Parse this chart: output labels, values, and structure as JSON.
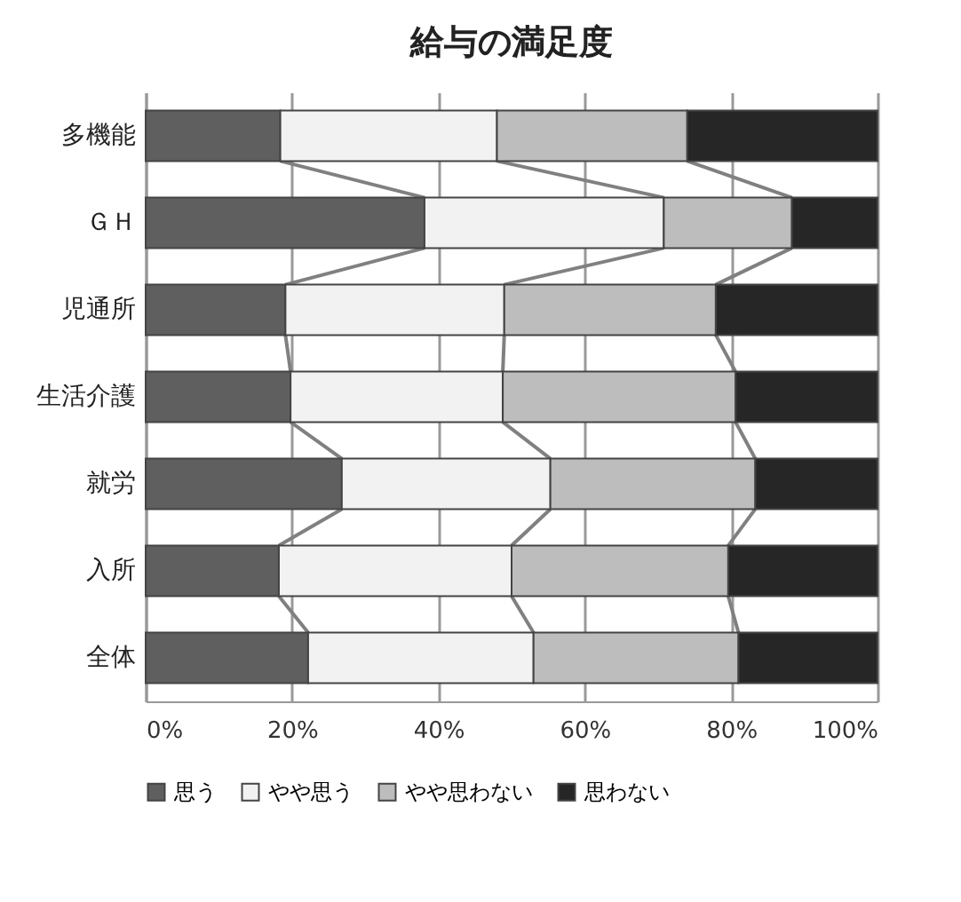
{
  "chart_data": {
    "type": "bar",
    "title": "給与の満足度",
    "orientation": "horizontal",
    "stacked": true,
    "categories": [
      "多機能",
      "ＧＨ",
      "児通所",
      "生活介護",
      "就労",
      "入所",
      "全体"
    ],
    "series": [
      {
        "name": "思う",
        "color": "#5f5f5f",
        "values": [
          18.4,
          38.1,
          19.1,
          19.8,
          26.8,
          18.2,
          22.2
        ]
      },
      {
        "name": "やや思う",
        "color": "#f2f2f2",
        "values": [
          29.6,
          32.7,
          29.9,
          29.0,
          28.5,
          31.8,
          30.8
        ]
      },
      {
        "name": "やや思わない",
        "color": "#bdbdbd",
        "values": [
          26.0,
          17.5,
          28.9,
          31.8,
          28.0,
          29.6,
          28.0
        ]
      },
      {
        "name": "思わない",
        "color": "#262626",
        "values": [
          26.0,
          11.7,
          22.1,
          19.4,
          16.7,
          20.4,
          19.0
        ]
      }
    ],
    "xlim": [
      0,
      100
    ],
    "xticks": [
      {
        "value": 0,
        "label": "0%"
      },
      {
        "value": 20,
        "label": "20%"
      },
      {
        "value": 40,
        "label": "40%"
      },
      {
        "value": 60,
        "label": "60%"
      },
      {
        "value": 80,
        "label": "80%"
      },
      {
        "value": 100,
        "label": "100%"
      }
    ],
    "grid": "x",
    "legend": "bottom"
  }
}
